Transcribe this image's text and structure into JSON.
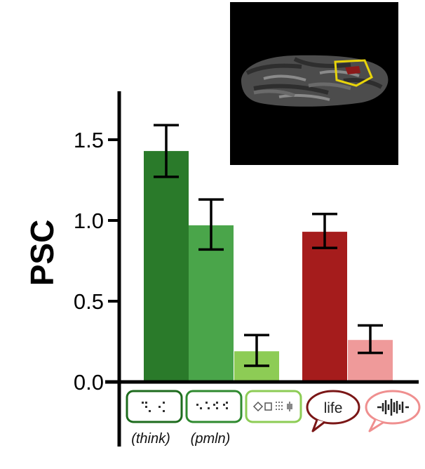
{
  "chart_data": {
    "type": "bar",
    "ylabel": "PSC",
    "ylim": [
      0,
      1.8
    ],
    "yticks": [
      "0.0",
      "0.5",
      "1.0",
      "1.5"
    ],
    "ytick_values": [
      0,
      0.5,
      1.0,
      1.5
    ],
    "categories": [
      {
        "icon": "braille-word-icon",
        "label": "(think)"
      },
      {
        "icon": "braille-nonword-icon",
        "label": "(pmln)"
      },
      {
        "icon": "shapes-icon",
        "label": ""
      },
      {
        "icon": "speech-bubble-word-icon",
        "text": "life",
        "label": ""
      },
      {
        "icon": "speech-bubble-sound-icon",
        "label": ""
      }
    ],
    "values": [
      1.43,
      0.97,
      0.19,
      0.93,
      0.26
    ],
    "error_low": [
      1.27,
      0.82,
      0.1,
      0.83,
      0.18
    ],
    "error_high": [
      1.59,
      1.13,
      0.29,
      1.04,
      0.35
    ],
    "colors": [
      "#2a7a2a",
      "#4aa54a",
      "#8dcc55",
      "#a51c1c",
      "#ef9a9a"
    ],
    "grid": false,
    "legend": "none"
  },
  "inset": {
    "icon": "brain-inflated-cortex-icon",
    "background": "#000000"
  }
}
